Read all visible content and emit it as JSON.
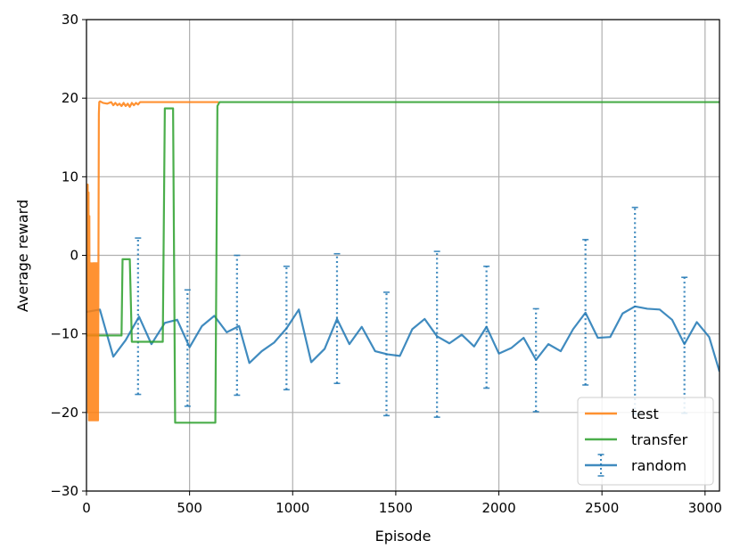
{
  "chart_data": {
    "type": "line",
    "title": "",
    "xlabel": "Episode",
    "ylabel": "Average reward",
    "xlim": [
      0,
      3070
    ],
    "ylim": [
      -30,
      30
    ],
    "xticks": [
      0,
      500,
      1000,
      1500,
      2000,
      2500,
      3000
    ],
    "yticks": [
      -30,
      -20,
      -10,
      0,
      10,
      20,
      30
    ],
    "xtick_labels": [
      "0",
      "500",
      "1000",
      "1500",
      "2000",
      "2500",
      "3000"
    ],
    "ytick_labels": [
      "−30",
      "−20",
      "−10",
      "0",
      "10",
      "20",
      "30"
    ],
    "grid": true,
    "legend_position": "bottom-right",
    "series": [
      {
        "name": "test",
        "color": "#ff7f0e",
        "style": "line",
        "x": [
          0,
          4,
          6,
          8,
          10,
          12,
          14,
          16,
          18,
          20,
          22,
          24,
          26,
          28,
          30,
          32,
          34,
          36,
          38,
          40,
          42,
          44,
          46,
          48,
          50,
          52,
          54,
          56,
          58,
          60,
          62,
          66,
          80,
          100,
          120,
          130,
          140,
          150,
          160,
          170,
          180,
          190,
          200,
          210,
          220,
          230,
          240,
          250,
          260,
          300,
          400,
          500,
          600,
          640
        ],
        "y": [
          -7,
          2,
          9,
          -20,
          8,
          -21,
          5,
          -21,
          -1,
          -21,
          -1,
          -21,
          -2,
          -21,
          -1,
          -21,
          -1,
          -21,
          -1,
          -21,
          -1,
          -21,
          -1,
          -21,
          -1,
          -21,
          -1,
          -21,
          -1,
          18,
          19.5,
          19.6,
          19.4,
          19.3,
          19.5,
          19.1,
          19.4,
          19.1,
          19.3,
          19.0,
          19.4,
          19.0,
          19.3,
          18.9,
          19.4,
          19.1,
          19.4,
          19.2,
          19.5,
          19.5,
          19.5,
          19.5,
          19.5,
          19.5
        ]
      },
      {
        "name": "transfer",
        "color": "#2ca02c",
        "style": "line",
        "x": [
          0,
          170,
          175,
          210,
          220,
          370,
          380,
          420,
          430,
          625,
          635,
          645,
          700,
          3070
        ],
        "y": [
          -10.2,
          -10.2,
          -0.5,
          -0.5,
          -11,
          -11,
          18.7,
          18.7,
          -21.3,
          -21.3,
          19,
          19.5,
          19.5,
          19.5
        ]
      },
      {
        "name": "random",
        "color": "#1f77b4",
        "style": "line-errorbar",
        "x": [
          0,
          65,
          130,
          190,
          255,
          315,
          380,
          440,
          500,
          560,
          620,
          680,
          740,
          790,
          850,
          910,
          970,
          1030,
          1090,
          1155,
          1215,
          1275,
          1335,
          1400,
          1460,
          1520,
          1580,
          1640,
          1700,
          1760,
          1820,
          1880,
          1940,
          2000,
          2060,
          2120,
          2180,
          2240,
          2300,
          2360,
          2420,
          2480,
          2540,
          2600,
          2660,
          2720,
          2780,
          2840,
          2900,
          2960,
          3020,
          3070
        ],
        "y": [
          -7.2,
          -6.9,
          -12.9,
          -10.8,
          -7.8,
          -11.3,
          -8.6,
          -8.2,
          -11.7,
          -9.0,
          -7.7,
          -9.8,
          -9.0,
          -13.7,
          -12.2,
          -11.1,
          -9.3,
          -6.9,
          -13.6,
          -11.9,
          -8.1,
          -11.3,
          -9.1,
          -12.2,
          -12.6,
          -12.8,
          -9.4,
          -8.1,
          -10.3,
          -11.2,
          -10.1,
          -11.6,
          -9.1,
          -12.5,
          -11.8,
          -10.5,
          -13.3,
          -11.3,
          -12.2,
          -9.4,
          -7.3,
          -10.5,
          -10.4,
          -7.4,
          -6.5,
          -6.8,
          -6.9,
          -8.2,
          -11.3,
          -8.5,
          -10.4,
          -14.8
        ],
        "errorbars": [
          {
            "x": 250,
            "low": -17.7,
            "high": 2.2
          },
          {
            "x": 490,
            "low": -19.2,
            "high": -4.4
          },
          {
            "x": 730,
            "low": -17.8,
            "high": 0.0
          },
          {
            "x": 970,
            "low": -17.1,
            "high": -1.4
          },
          {
            "x": 1215,
            "low": -16.3,
            "high": 0.2
          },
          {
            "x": 1455,
            "low": -20.4,
            "high": -4.7
          },
          {
            "x": 1700,
            "low": -20.6,
            "high": 0.5
          },
          {
            "x": 1940,
            "low": -16.9,
            "high": -1.4
          },
          {
            "x": 2180,
            "low": -19.9,
            "high": -6.8
          },
          {
            "x": 2420,
            "low": -16.5,
            "high": 2.0
          },
          {
            "x": 2660,
            "low": -20.2,
            "high": 6.1
          },
          {
            "x": 2900,
            "low": -20.1,
            "high": -2.8
          }
        ]
      }
    ]
  }
}
